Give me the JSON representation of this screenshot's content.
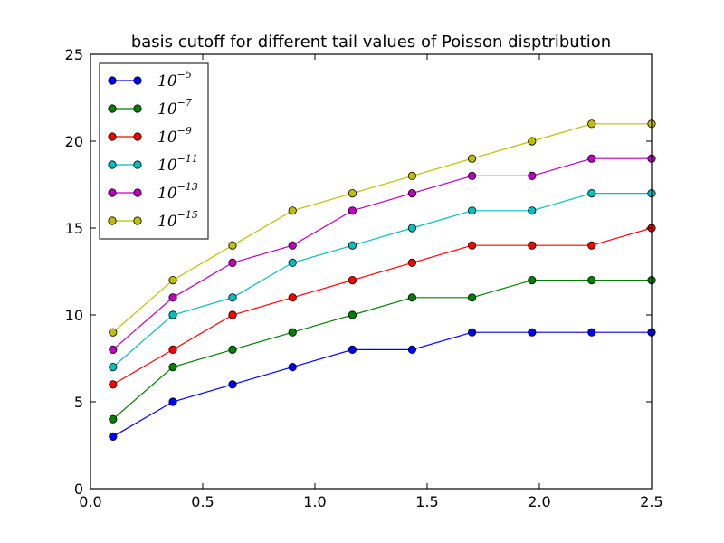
{
  "chart_data": {
    "type": "line",
    "title": "basis cutoff for different tail values of  Poisson disptribution",
    "xlabel": "",
    "ylabel": "",
    "xlim": [
      0.0,
      2.5
    ],
    "ylim": [
      0,
      25
    ],
    "xticks": [
      0.0,
      0.5,
      1.0,
      1.5,
      2.0,
      2.5
    ],
    "xtick_labels": [
      "0.0",
      "0.5",
      "1.0",
      "1.5",
      "2.0",
      "2.5"
    ],
    "yticks": [
      0,
      5,
      10,
      15,
      20,
      25
    ],
    "ytick_labels": [
      "0",
      "5",
      "10",
      "15",
      "20",
      "25"
    ],
    "grid": false,
    "legend_position": "top-left",
    "x": [
      0.1,
      0.367,
      0.633,
      0.9,
      1.167,
      1.433,
      1.7,
      1.967,
      2.233,
      2.5
    ],
    "series": [
      {
        "name": "10^-5",
        "base": "10",
        "exponent": "−5",
        "color": "#0000ff",
        "values": [
          3,
          5,
          6,
          7,
          8,
          8,
          9,
          9,
          9,
          9
        ]
      },
      {
        "name": "10^-7",
        "base": "10",
        "exponent": "−7",
        "color": "#008000",
        "values": [
          4,
          7,
          8,
          9,
          10,
          11,
          11,
          12,
          12,
          12
        ]
      },
      {
        "name": "10^-9",
        "base": "10",
        "exponent": "−9",
        "color": "#ff0000",
        "values": [
          6,
          8,
          10,
          11,
          12,
          13,
          14,
          14,
          14,
          15
        ]
      },
      {
        "name": "10^-11",
        "base": "10",
        "exponent": "−11",
        "color": "#00bfbf",
        "values": [
          7,
          10,
          11,
          13,
          14,
          15,
          16,
          16,
          17,
          17
        ]
      },
      {
        "name": "10^-13",
        "base": "10",
        "exponent": "−13",
        "color": "#bf00bf",
        "values": [
          8,
          11,
          13,
          14,
          16,
          17,
          18,
          18,
          19,
          19
        ]
      },
      {
        "name": "10^-15",
        "base": "10",
        "exponent": "−15",
        "color": "#bfbf00",
        "values": [
          9,
          12,
          14,
          16,
          17,
          18,
          19,
          20,
          21,
          21
        ]
      }
    ]
  }
}
